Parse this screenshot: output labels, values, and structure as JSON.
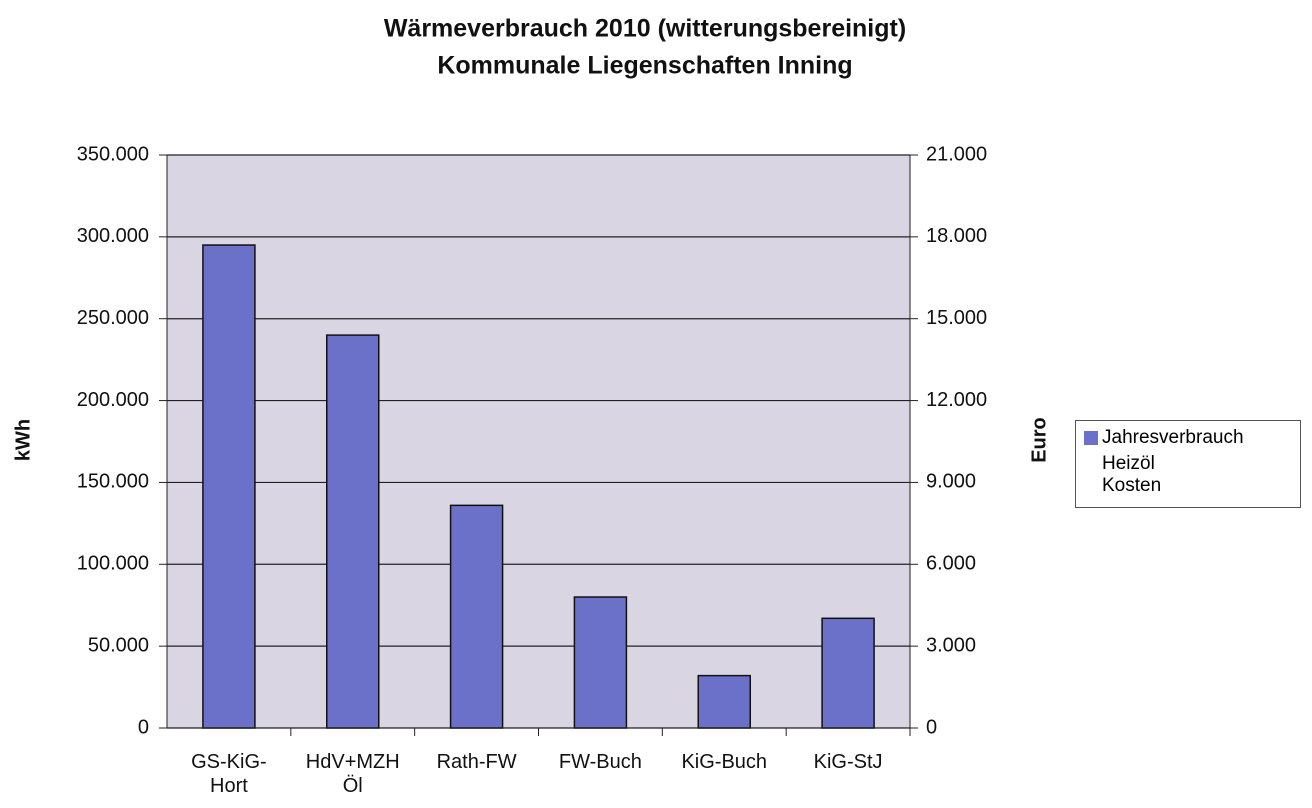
{
  "chart_data": {
    "type": "bar",
    "title": "Wärmeverbrauch 2010 (witterungsbereinigt)",
    "subtitle": "Kommunale Liegenschaften Inning",
    "y_label": "kWh",
    "y2_label": "Euro",
    "categories": [
      "GS-KiG-Hort",
      "HdV+MZH Öl",
      "Rath-FW",
      "FW-Buch",
      "KiG-Buch",
      "KiG-StJ"
    ],
    "series": [
      {
        "name": "Jahresverbrauch",
        "color": "#6b70c8",
        "values": [
          295000,
          240000,
          136000,
          80000,
          32000,
          67000
        ]
      },
      {
        "name": "Heizöl Kosten",
        "axis": "y2",
        "values": [
          null,
          null,
          null,
          null,
          null,
          null
        ]
      }
    ],
    "ylim": [
      0,
      350000
    ],
    "yticks": [
      0,
      {
        "value": 50000,
        "label": "50.000"
      },
      {
        "value": 100000,
        "label": "100.000"
      },
      {
        "value": 150000,
        "label": "150.000"
      },
      {
        "value": 200000,
        "label": "200.000"
      },
      {
        "value": 250000,
        "label": "250.000"
      },
      {
        "value": 300000,
        "label": "300.000"
      },
      {
        "value": 350000,
        "label": "350.000"
      }
    ],
    "y2lim": [
      0,
      21000
    ],
    "y2ticks": [
      0,
      {
        "value": 3000,
        "label": "3.000"
      },
      {
        "value": 6000,
        "label": "6.000"
      },
      {
        "value": 9000,
        "label": "9.000"
      },
      {
        "value": 12000,
        "label": "12.000"
      },
      {
        "value": 15000,
        "label": "15.000"
      },
      {
        "value": 18000,
        "label": "18.000"
      },
      {
        "value": 21000,
        "label": "21.000"
      }
    ],
    "grid": true,
    "legend": "right"
  }
}
